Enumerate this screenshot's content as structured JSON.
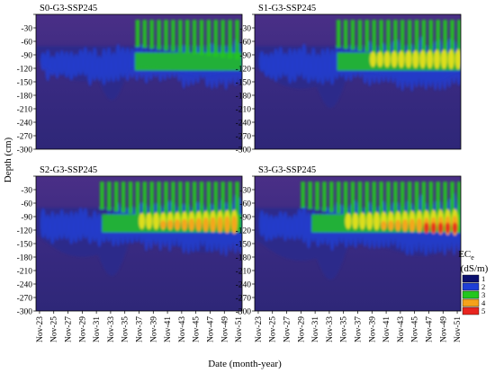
{
  "chart_data": {
    "type": "heatmap",
    "panels": [
      {
        "title": "S0-G3-SSP245",
        "intensity": 0.55
      },
      {
        "title": "S1-G3-SSP245",
        "intensity": 0.8
      },
      {
        "title": "S2-G3-SSP245",
        "intensity": 1.0
      },
      {
        "title": "S3-G3-SSP245",
        "intensity": 1.12
      }
    ],
    "xlabel": "Date (month-year)",
    "ylabel": "Depth (cm)",
    "x_ticks": [
      "Nov-23",
      "Nov-25",
      "Nov-27",
      "Nov-29",
      "Nov-31",
      "Nov-33",
      "Nov-35",
      "Nov-37",
      "Nov-39",
      "Nov-41",
      "Nov-43",
      "Nov-45",
      "Nov-47",
      "Nov-49",
      "Nov-51"
    ],
    "y_ticks": [
      -30,
      -60,
      -90,
      -120,
      -150,
      -180,
      -210,
      -240,
      -270,
      -300
    ],
    "ylim": [
      -300,
      0
    ],
    "xlim": [
      "Nov-23",
      "Nov-52"
    ],
    "colorbar": {
      "title": "EC",
      "title_sub": "e",
      "unit": "(dS/m)",
      "levels": [
        1,
        2,
        3,
        4,
        5
      ],
      "colors": [
        "#0a0f6e",
        "#1f3fd6",
        "#23c61e",
        "#f5a21b",
        "#e8251f"
      ]
    },
    "colors": {
      "background": "#3a2a82",
      "deep": "#2c2c8c",
      "blue": "#1f3fd6",
      "green": "#23c61e",
      "yellow": "#e8e01a",
      "orange": "#f5a21b",
      "red": "#e8251f"
    }
  }
}
